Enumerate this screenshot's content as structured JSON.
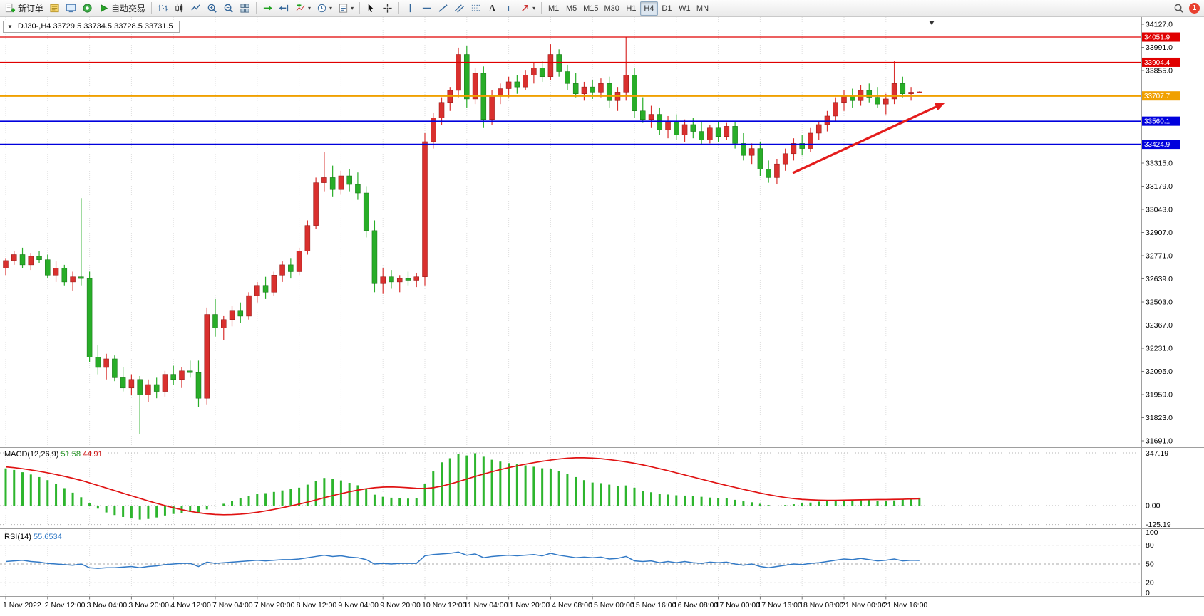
{
  "window": {
    "notification_count": "1"
  },
  "toolbar": {
    "items": [
      {
        "type": "button",
        "name": "new-order",
        "icon": "new-order-icon",
        "label": "新订单"
      },
      {
        "type": "button",
        "name": "metaeditor",
        "icon": "metaeditor-icon"
      },
      {
        "type": "button",
        "name": "terminal",
        "icon": "terminal-icon"
      },
      {
        "type": "button",
        "name": "data-window",
        "icon": "data-window-icon"
      },
      {
        "type": "button",
        "name": "autotrading",
        "icon": "play-icon",
        "label": "自动交易"
      },
      {
        "type": "sep"
      },
      {
        "type": "button",
        "name": "bar-chart",
        "icon": "bars-icon"
      },
      {
        "type": "button",
        "name": "candle-chart",
        "icon": "candles-icon"
      },
      {
        "type": "button",
        "name": "line-chart",
        "icon": "line-icon"
      },
      {
        "type": "button",
        "name": "zoom-in",
        "icon": "zoom-in-icon"
      },
      {
        "type": "button",
        "name": "zoom-out",
        "icon": "zoom-out-icon"
      },
      {
        "type": "button",
        "name": "tile-windows",
        "icon": "tile-icon"
      },
      {
        "type": "sep"
      },
      {
        "type": "button",
        "name": "auto-scroll",
        "icon": "autoscroll-icon"
      },
      {
        "type": "button",
        "name": "chart-shift",
        "icon": "shift-icon"
      },
      {
        "type": "button",
        "name": "indicators",
        "icon": "indicator-icon",
        "caret": true
      },
      {
        "type": "button",
        "name": "periods",
        "icon": "clock-icon",
        "caret": true
      },
      {
        "type": "button",
        "name": "templates",
        "icon": "template-icon",
        "caret": true
      },
      {
        "type": "sep"
      },
      {
        "type": "button",
        "name": "cursor",
        "icon": "cursor-icon"
      },
      {
        "type": "button",
        "name": "crosshair",
        "icon": "crosshair-icon"
      },
      {
        "type": "sep"
      },
      {
        "type": "button",
        "name": "vertical-line",
        "icon": "vline-icon"
      },
      {
        "type": "button",
        "name": "horizontal-line",
        "icon": "hline-icon"
      },
      {
        "type": "button",
        "name": "trendline",
        "icon": "trend-icon"
      },
      {
        "type": "button",
        "name": "channel",
        "icon": "channel-icon"
      },
      {
        "type": "button",
        "name": "fibonacci",
        "icon": "fibo-icon"
      },
      {
        "type": "button",
        "name": "text",
        "icon": "text-a-icon"
      },
      {
        "type": "button",
        "name": "text-label",
        "icon": "label-t-icon"
      },
      {
        "type": "button",
        "name": "arrows",
        "icon": "arrow-tool-icon",
        "caret": true
      },
      {
        "type": "sep"
      },
      {
        "type": "timeframes"
      },
      {
        "type": "spacer"
      },
      {
        "type": "button",
        "name": "search",
        "icon": "search-icon"
      },
      {
        "type": "notification",
        "label": "1"
      }
    ],
    "timeframes": [
      "M1",
      "M5",
      "M15",
      "M30",
      "H1",
      "H4",
      "D1",
      "W1",
      "MN"
    ],
    "active_timeframe": "H4"
  },
  "header": {
    "collapse_arrow": "▼",
    "symbol_ohlc": "DJ30-,H4  33729.5 33734.5 33728.5 33731.5"
  },
  "chart_data": {
    "type": "candlestick",
    "symbol": "DJ30-",
    "period": "H4",
    "ohlc_header": {
      "open": "33729.5",
      "high": "33734.5",
      "low": "33728.5",
      "close": "33731.5"
    },
    "ylim": [
      31691,
      34127
    ],
    "price_axis_ticks": [
      "34127.0",
      "33991.0",
      "33855.0",
      "",
      "",
      "",
      "33315.0",
      "33179.0",
      "33043.0",
      "32907.0",
      "32771.0",
      "32639.0",
      "32503.0",
      "32367.0",
      "32231.0",
      "32095.0",
      "31959.0",
      "31823.0",
      "31691.0"
    ],
    "price_lines": [
      {
        "label": "34051.9",
        "price": 34051.9,
        "color": "#e00000",
        "width": 1.2,
        "role": "resistance-line"
      },
      {
        "label": "33904.4",
        "price": 33904.4,
        "color": "#e00000",
        "width": 1.2,
        "role": "resistance-line"
      },
      {
        "label": "33707.7",
        "price": 33707.7,
        "color": "#f0a000",
        "width": 2.4,
        "role": "current-price-line"
      },
      {
        "label": "33560.1",
        "price": 33560.1,
        "color": "#0000dd",
        "width": 1.6,
        "role": "support-line"
      },
      {
        "label": "33424.9",
        "price": 33424.9,
        "color": "#0000dd",
        "width": 1.6,
        "role": "support-line"
      }
    ],
    "time_labels": [
      "1 Nov 2022",
      "2 Nov 12:00",
      "3 Nov 04:00",
      "3 Nov 20:00",
      "4 Nov 12:00",
      "7 Nov 04:00",
      "7 Nov 20:00",
      "8 Nov 12:00",
      "9 Nov 04:00",
      "9 Nov 20:00",
      "10 Nov 12:00",
      "11 Nov 04:00",
      "11 Nov 20:00",
      "14 Nov 08:00",
      "15 Nov 00:00",
      "15 Nov 16:00",
      "16 Nov 08:00",
      "17 Nov 00:00",
      "17 Nov 16:00",
      "18 Nov 08:00",
      "21 Nov 00:00",
      "21 Nov 16:00"
    ],
    "colors": {
      "up": "#d9302e",
      "up_border": "#8f1512",
      "down": "#28ad28",
      "down_border": "#156e15",
      "grid": "#dedede",
      "macd_hist": "#2db52d",
      "macd_signal": "#e01212",
      "rsi": "#3179c6",
      "arrow": "#e41c1c"
    },
    "candles": [
      [
        32700,
        32760,
        32660,
        32745
      ],
      [
        32745,
        32800,
        32720,
        32780
      ],
      [
        32780,
        32820,
        32700,
        32720
      ],
      [
        32720,
        32790,
        32690,
        32770
      ],
      [
        32770,
        32800,
        32730,
        32750
      ],
      [
        32750,
        32780,
        32640,
        32660
      ],
      [
        32660,
        32740,
        32620,
        32700
      ],
      [
        32700,
        32720,
        32600,
        32620
      ],
      [
        32620,
        32680,
        32570,
        32650
      ],
      [
        32650,
        33110,
        32600,
        32640
      ],
      [
        32640,
        32680,
        32150,
        32180
      ],
      [
        32180,
        32250,
        32080,
        32120
      ],
      [
        32120,
        32200,
        32050,
        32170
      ],
      [
        32170,
        32190,
        32040,
        32060
      ],
      [
        32060,
        32120,
        31980,
        32000
      ],
      [
        32000,
        32080,
        31960,
        32050
      ],
      [
        32050,
        32070,
        31730,
        31960
      ],
      [
        31960,
        32050,
        31920,
        32020
      ],
      [
        32020,
        32060,
        31940,
        31980
      ],
      [
        31980,
        32100,
        31950,
        32080
      ],
      [
        32080,
        32130,
        32020,
        32050
      ],
      [
        32050,
        32120,
        32000,
        32100
      ],
      [
        32100,
        32160,
        32060,
        32090
      ],
      [
        32090,
        32160,
        31890,
        31940
      ],
      [
        31940,
        32470,
        31900,
        32430
      ],
      [
        32430,
        32520,
        32300,
        32350
      ],
      [
        32350,
        32420,
        32280,
        32400
      ],
      [
        32400,
        32480,
        32360,
        32450
      ],
      [
        32450,
        32500,
        32380,
        32420
      ],
      [
        32420,
        32560,
        32400,
        32540
      ],
      [
        32540,
        32620,
        32500,
        32600
      ],
      [
        32600,
        32650,
        32520,
        32560
      ],
      [
        32560,
        32680,
        32540,
        32660
      ],
      [
        32660,
        32740,
        32620,
        32720
      ],
      [
        32720,
        32760,
        32640,
        32680
      ],
      [
        32680,
        32820,
        32660,
        32800
      ],
      [
        32800,
        32980,
        32780,
        32950
      ],
      [
        32950,
        33230,
        32930,
        33200
      ],
      [
        33200,
        33380,
        33150,
        33230
      ],
      [
        33230,
        33300,
        33120,
        33160
      ],
      [
        33160,
        33270,
        33130,
        33240
      ],
      [
        33240,
        33280,
        33150,
        33190
      ],
      [
        33190,
        33260,
        33100,
        33140
      ],
      [
        33140,
        33180,
        32880,
        32920
      ],
      [
        32920,
        32980,
        32560,
        32610
      ],
      [
        32610,
        32700,
        32550,
        32650
      ],
      [
        32650,
        32690,
        32580,
        32620
      ],
      [
        32620,
        32660,
        32560,
        32640
      ],
      [
        32640,
        32680,
        32600,
        32630
      ],
      [
        32630,
        32670,
        32590,
        32650
      ],
      [
        32650,
        33490,
        32600,
        33440
      ],
      [
        33440,
        33610,
        33400,
        33580
      ],
      [
        33580,
        33700,
        33540,
        33670
      ],
      [
        33670,
        33760,
        33620,
        33740
      ],
      [
        33740,
        33990,
        33700,
        33950
      ],
      [
        33950,
        34000,
        33640,
        33690
      ],
      [
        33690,
        33870,
        33660,
        33840
      ],
      [
        33840,
        33880,
        33520,
        33570
      ],
      [
        33570,
        33740,
        33540,
        33710
      ],
      [
        33710,
        33780,
        33660,
        33750
      ],
      [
        33750,
        33820,
        33700,
        33790
      ],
      [
        33790,
        33830,
        33720,
        33760
      ],
      [
        33760,
        33860,
        33740,
        33830
      ],
      [
        33830,
        33900,
        33780,
        33870
      ],
      [
        33870,
        33910,
        33790,
        33820
      ],
      [
        33820,
        34010,
        33800,
        33950
      ],
      [
        33950,
        33980,
        33820,
        33850
      ],
      [
        33850,
        33890,
        33740,
        33780
      ],
      [
        33780,
        33840,
        33700,
        33720
      ],
      [
        33720,
        33790,
        33680,
        33760
      ],
      [
        33760,
        33800,
        33690,
        33730
      ],
      [
        33730,
        33810,
        33700,
        33780
      ],
      [
        33780,
        33820,
        33640,
        33680
      ],
      [
        33680,
        33760,
        33620,
        33730
      ],
      [
        33730,
        34050,
        33680,
        33830
      ],
      [
        33830,
        33870,
        33580,
        33620
      ],
      [
        33620,
        33700,
        33550,
        33570
      ],
      [
        33570,
        33650,
        33520,
        33600
      ],
      [
        33600,
        33640,
        33480,
        33510
      ],
      [
        33510,
        33590,
        33460,
        33560
      ],
      [
        33560,
        33600,
        33450,
        33480
      ],
      [
        33480,
        33570,
        33440,
        33540
      ],
      [
        33540,
        33580,
        33460,
        33500
      ],
      [
        33500,
        33560,
        33420,
        33450
      ],
      [
        33450,
        33540,
        33430,
        33520
      ],
      [
        33520,
        33560,
        33440,
        33470
      ],
      [
        33470,
        33550,
        33450,
        33530
      ],
      [
        33530,
        33560,
        33400,
        33430
      ],
      [
        33430,
        33490,
        33330,
        33360
      ],
      [
        33360,
        33430,
        33310,
        33400
      ],
      [
        33400,
        33440,
        33240,
        33280
      ],
      [
        33280,
        33330,
        33200,
        33230
      ],
      [
        33230,
        33340,
        33190,
        33310
      ],
      [
        33310,
        33400,
        33270,
        33370
      ],
      [
        33370,
        33460,
        33330,
        33430
      ],
      [
        33430,
        33480,
        33360,
        33400
      ],
      [
        33400,
        33520,
        33380,
        33490
      ],
      [
        33490,
        33560,
        33450,
        33540
      ],
      [
        33540,
        33620,
        33500,
        33590
      ],
      [
        33590,
        33700,
        33560,
        33670
      ],
      [
        33670,
        33740,
        33620,
        33710
      ],
      [
        33710,
        33750,
        33640,
        33680
      ],
      [
        33680,
        33770,
        33650,
        33740
      ],
      [
        33740,
        33780,
        33670,
        33700
      ],
      [
        33700,
        33760,
        33640,
        33660
      ],
      [
        33660,
        33720,
        33600,
        33690
      ],
      [
        33690,
        33910,
        33660,
        33780
      ],
      [
        33780,
        33820,
        33700,
        33720
      ],
      [
        33720,
        33760,
        33680,
        33729.5
      ],
      [
        33729.5,
        33734.5,
        33728.5,
        33731.5
      ]
    ],
    "indicators": {
      "macd": {
        "label": "MACD(12,26,9)",
        "main_value": "51.58",
        "signal_value": "44.91",
        "axis": [
          "347.19",
          "0.00",
          "-125.19"
        ],
        "scale_max": 347.19,
        "scale_min": -125.19,
        "histogram": [
          245,
          235,
          220,
          205,
          188,
          168,
          145,
          115,
          85,
          55,
          15,
          -20,
          -45,
          -62,
          -75,
          -85,
          -92,
          -88,
          -78,
          -65,
          -55,
          -48,
          -42,
          -52,
          -25,
          -5,
          12,
          30,
          48,
          62,
          75,
          82,
          90,
          100,
          108,
          118,
          138,
          162,
          182,
          176,
          166,
          150,
          134,
          108,
          72,
          58,
          52,
          48,
          46,
          50,
          145,
          225,
          285,
          312,
          338,
          330,
          345,
          322,
          302,
          290,
          280,
          272,
          265,
          256,
          246,
          240,
          228,
          208,
          188,
          168,
          152,
          148,
          138,
          128,
          133,
          118,
          98,
          88,
          78,
          73,
          68,
          66,
          63,
          58,
          53,
          49,
          47,
          38,
          28,
          22,
          12,
          4,
          -2,
          4,
          9,
          14,
          20,
          26,
          31,
          36,
          39,
          37,
          39,
          36,
          31,
          29,
          34,
          40,
          46,
          52
        ],
        "signal": [
          255,
          250,
          243,
          235,
          226,
          216,
          205,
          193,
          180,
          166,
          150,
          133,
          116,
          99,
          82,
          65,
          48,
          31,
          15,
          0,
          -14,
          -27,
          -38,
          -47,
          -54,
          -58,
          -60,
          -59,
          -56,
          -51,
          -44,
          -35,
          -25,
          -14,
          -2,
          10,
          23,
          37,
          52,
          66,
          79,
          91,
          102,
          111,
          118,
          122,
          123,
          121,
          118,
          114,
          113,
          118,
          128,
          142,
          158,
          175,
          192,
          208,
          223,
          237,
          250,
          262,
          273,
          283,
          292,
          300,
          307,
          312,
          315,
          315,
          313,
          309,
          303,
          296,
          288,
          279,
          268,
          256,
          243,
          230,
          216,
          202,
          188,
          174,
          160,
          146,
          133,
          120,
          107,
          95,
          83,
          72,
          62,
          53,
          46,
          41,
          38,
          36,
          35,
          35,
          36,
          37,
          38,
          39,
          40,
          40,
          41,
          42,
          44,
          45
        ]
      },
      "rsi": {
        "label": "RSI(14)",
        "value": "55.6534",
        "axis": [
          "100",
          "80",
          "50",
          "20",
          "0"
        ],
        "levels": [
          80,
          50,
          20
        ],
        "series": [
          54,
          55,
          56,
          54,
          53,
          51,
          50,
          49,
          48,
          50,
          44,
          43,
          44,
          44,
          45,
          46,
          44,
          46,
          47,
          49,
          50,
          51,
          51,
          46,
          53,
          51,
          52,
          53,
          54,
          55,
          56,
          55,
          56,
          57,
          57,
          58,
          60,
          62,
          64,
          62,
          63,
          61,
          60,
          57,
          50,
          51,
          50,
          51,
          51,
          51,
          63,
          65,
          66,
          67,
          69,
          64,
          66,
          60,
          62,
          63,
          64,
          63,
          64,
          65,
          63,
          67,
          64,
          62,
          60,
          61,
          60,
          61,
          58,
          59,
          62,
          55,
          54,
          55,
          52,
          54,
          52,
          54,
          52,
          51,
          53,
          52,
          53,
          50,
          48,
          50,
          46,
          44,
          46,
          48,
          50,
          49,
          51,
          52,
          54,
          56,
          58,
          57,
          59,
          57,
          55,
          56,
          58,
          55,
          56,
          55.65
        ]
      }
    },
    "annotations": [
      {
        "type": "trend-arrow",
        "color": "#e41c1c",
        "from_price": 33280,
        "to_price": 33700
      }
    ]
  }
}
